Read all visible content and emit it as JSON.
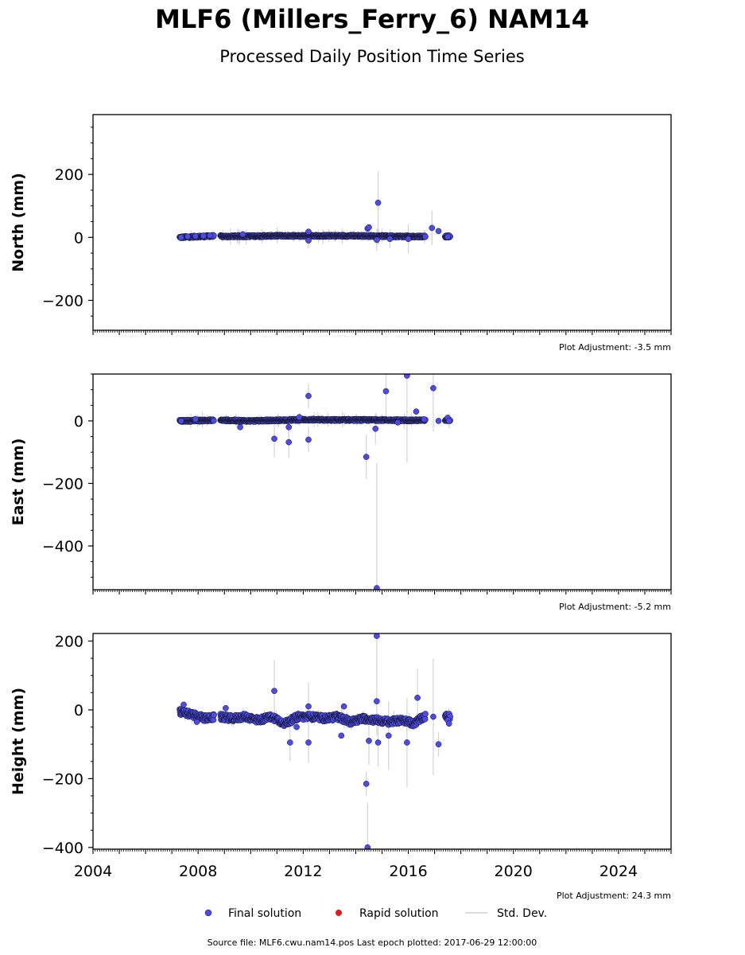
{
  "page": {
    "title": "MLF6 (Millers_Ferry_6) NAM14",
    "subtitle": "Processed Daily Position Time Series",
    "footer": "Source file: MLF6.cwu.nam14.pos  Last epoch plotted: 2017-06-29 12:00:00"
  },
  "legend": {
    "final_label": "Final solution",
    "rapid_label": "Rapid solution",
    "std_label": "Std. Dev.",
    "final_color": "#4a4aed",
    "rapid_color": "#e31a1c",
    "std_color": "#d3d3d3"
  },
  "x_tick_labels": [
    "2004",
    "2008",
    "2012",
    "2016",
    "2020",
    "2024"
  ],
  "chart_data": [
    {
      "type": "scatter",
      "ylabel": "North (mm)",
      "adjustment": "Plot Adjustment: -3.5 mm",
      "xlim": [
        2004.0,
        2026.0
      ],
      "ylim": [
        -295,
        390
      ],
      "yticks": [
        -200,
        0,
        200
      ],
      "x_ticks_labeled": false,
      "series": [
        {
          "role": "final",
          "baseline": [
            [
              2007.3,
              0
            ],
            [
              2007.8,
              2
            ],
            [
              2008.5,
              4
            ],
            [
              2009.0,
              3
            ],
            [
              2010.0,
              4
            ],
            [
              2011.0,
              5
            ],
            [
              2012.0,
              5
            ],
            [
              2013.0,
              5
            ],
            [
              2014.0,
              5
            ],
            [
              2015.0,
              4
            ],
            [
              2016.0,
              3
            ],
            [
              2016.6,
              3
            ]
          ],
          "points": [
            {
              "x": 2007.35,
              "y": 0
            },
            {
              "x": 2007.6,
              "y": 3
            },
            {
              "x": 2007.9,
              "y": 4
            },
            {
              "x": 2008.2,
              "y": 5
            },
            {
              "x": 2008.45,
              "y": 6
            },
            {
              "x": 2009.7,
              "y": 10
            },
            {
              "x": 2012.2,
              "y": 18
            },
            {
              "x": 2014.45,
              "y": 28
            },
            {
              "x": 2014.5,
              "y": 32
            },
            {
              "x": 2014.85,
              "y": 110,
              "err": 100
            },
            {
              "x": 2016.9,
              "y": 30,
              "err": 55
            },
            {
              "x": 2017.15,
              "y": 20
            },
            {
              "x": 2017.55,
              "y": 5
            },
            {
              "x": 2017.5,
              "y": 2
            },
            {
              "x": 2012.2,
              "y": -10,
              "err": 25
            },
            {
              "x": 2016.0,
              "y": -5,
              "err": 45
            },
            {
              "x": 2015.3,
              "y": -5,
              "err": 30
            },
            {
              "x": 2014.8,
              "y": -8,
              "err": 35
            }
          ]
        }
      ]
    },
    {
      "type": "scatter",
      "ylabel": "East (mm)",
      "adjustment": "Plot Adjustment: -5.2 mm",
      "xlim": [
        2004.0,
        2026.0
      ],
      "ylim": [
        -540,
        150
      ],
      "yticks": [
        -400,
        -200,
        0
      ],
      "x_ticks_labeled": false,
      "series": [
        {
          "role": "final",
          "baseline": [
            [
              2007.3,
              0
            ],
            [
              2008.5,
              2
            ],
            [
              2009.0,
              2
            ],
            [
              2010.0,
              0
            ],
            [
              2011.0,
              2
            ],
            [
              2012.0,
              4
            ],
            [
              2013.0,
              3
            ],
            [
              2014.0,
              3
            ],
            [
              2015.0,
              3
            ],
            [
              2016.0,
              2
            ],
            [
              2016.6,
              2
            ]
          ],
          "points": [
            {
              "x": 2007.35,
              "y": 0
            },
            {
              "x": 2007.9,
              "y": 6
            },
            {
              "x": 2009.6,
              "y": -20
            },
            {
              "x": 2010.9,
              "y": -57,
              "err": 60
            },
            {
              "x": 2011.45,
              "y": -68,
              "err": 50
            },
            {
              "x": 2011.45,
              "y": -20,
              "err": 40
            },
            {
              "x": 2011.85,
              "y": 12
            },
            {
              "x": 2012.2,
              "y": -60,
              "err": 40
            },
            {
              "x": 2012.2,
              "y": 80,
              "err": 40
            },
            {
              "x": 2014.4,
              "y": -115,
              "err": 70
            },
            {
              "x": 2014.8,
              "y": -535,
              "err": 400
            },
            {
              "x": 2014.75,
              "y": -25,
              "err": 50
            },
            {
              "x": 2015.15,
              "y": 95,
              "err": 100
            },
            {
              "x": 2015.6,
              "y": -5
            },
            {
              "x": 2015.95,
              "y": 145,
              "err": 280
            },
            {
              "x": 2016.3,
              "y": 30
            },
            {
              "x": 2016.6,
              "y": 5
            },
            {
              "x": 2016.95,
              "y": 105,
              "err": 140
            },
            {
              "x": 2017.15,
              "y": 0
            },
            {
              "x": 2017.5,
              "y": 10
            },
            {
              "x": 2017.55,
              "y": 0
            }
          ]
        }
      ]
    },
    {
      "type": "scatter",
      "ylabel": "Height (mm)",
      "adjustment": "Plot Adjustment: 24.3 mm",
      "xlim": [
        2004.0,
        2026.0
      ],
      "ylim": [
        -405,
        222
      ],
      "yticks": [
        -400,
        -200,
        0,
        200
      ],
      "x_ticks_labeled": true,
      "series": [
        {
          "role": "final",
          "baseline": [
            [
              2007.3,
              -5
            ],
            [
              2007.8,
              -15
            ],
            [
              2008.3,
              -25
            ],
            [
              2008.8,
              -20
            ],
            [
              2009.3,
              -25
            ],
            [
              2009.8,
              -20
            ],
            [
              2010.3,
              -30
            ],
            [
              2010.8,
              -20
            ],
            [
              2011.3,
              -40
            ],
            [
              2011.8,
              -20
            ],
            [
              2012.3,
              -20
            ],
            [
              2012.8,
              -25
            ],
            [
              2013.3,
              -20
            ],
            [
              2013.8,
              -35
            ],
            [
              2014.3,
              -25
            ],
            [
              2014.8,
              -30
            ],
            [
              2015.3,
              -35
            ],
            [
              2015.8,
              -30
            ],
            [
              2016.2,
              -40
            ],
            [
              2016.6,
              -20
            ]
          ],
          "points": [
            {
              "x": 2007.45,
              "y": 15
            },
            {
              "x": 2007.95,
              "y": -35
            },
            {
              "x": 2008.6,
              "y": -15
            },
            {
              "x": 2009.05,
              "y": 5
            },
            {
              "x": 2010.9,
              "y": 55,
              "err": 90
            },
            {
              "x": 2011.5,
              "y": -95,
              "err": 55
            },
            {
              "x": 2011.75,
              "y": -50
            },
            {
              "x": 2012.2,
              "y": -95,
              "err": 60
            },
            {
              "x": 2012.2,
              "y": 10,
              "err": 70
            },
            {
              "x": 2013.45,
              "y": -75
            },
            {
              "x": 2013.55,
              "y": 10
            },
            {
              "x": 2014.4,
              "y": -215,
              "err": 35
            },
            {
              "x": 2014.45,
              "y": -400,
              "err": 130
            },
            {
              "x": 2014.5,
              "y": -90,
              "err": 70
            },
            {
              "x": 2014.8,
              "y": 215,
              "err": 100
            },
            {
              "x": 2014.8,
              "y": 25,
              "err": 100
            },
            {
              "x": 2014.85,
              "y": -95,
              "err": 70
            },
            {
              "x": 2015.25,
              "y": -75,
              "err": 100
            },
            {
              "x": 2015.95,
              "y": -95,
              "err": 130
            },
            {
              "x": 2016.35,
              "y": 35,
              "err": 85
            },
            {
              "x": 2016.95,
              "y": -20,
              "err": 170
            },
            {
              "x": 2017.15,
              "y": -100,
              "err": 35
            },
            {
              "x": 2017.5,
              "y": -30
            },
            {
              "x": 2017.55,
              "y": -40
            }
          ]
        }
      ]
    }
  ]
}
